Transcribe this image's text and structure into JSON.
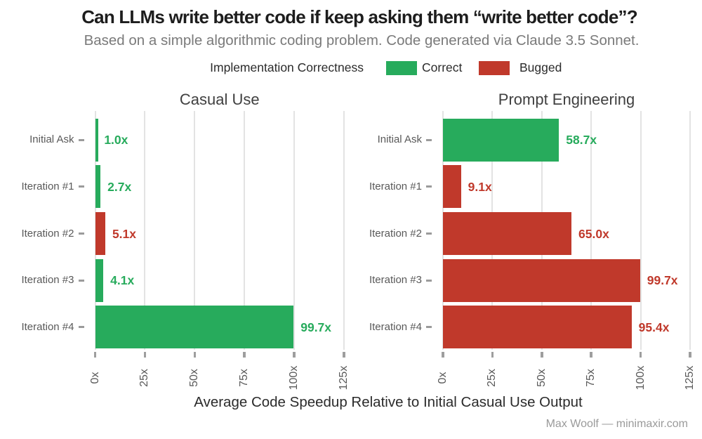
{
  "title": "Can LLMs write better code if keep asking them “write better code”?",
  "subtitle": "Based on a simple algorithmic coding problem. Code generated via Claude 3.5 Sonnet.",
  "legend": {
    "title": "Implementation Correctness",
    "items": [
      {
        "label": "Correct",
        "color": "#27ab5c"
      },
      {
        "label": "Bugged",
        "color": "#c0392b"
      }
    ]
  },
  "x_axis_title": "Average Code Speedup Relative to Initial Casual Use Output",
  "caption": "Max Woolf — minimaxir.com",
  "chart_data": {
    "type": "bar",
    "orientation": "horizontal",
    "title": "Can LLMs write better code if keep asking them “write better code”?",
    "subtitle": "Based on a simple algorithmic coding problem. Code generated via Claude 3.5 Sonnet.",
    "xlabel": "Average Code Speedup Relative to Initial Casual Use Output",
    "categories": [
      "Initial Ask",
      "Iteration #1",
      "Iteration #2",
      "Iteration #3",
      "Iteration #4"
    ],
    "xlim": [
      0,
      125
    ],
    "x_ticks": [
      {
        "value": 0,
        "label": "0x"
      },
      {
        "value": 25,
        "label": "25x"
      },
      {
        "value": 50,
        "label": "50x"
      },
      {
        "value": 75,
        "label": "75x"
      },
      {
        "value": 100,
        "label": "100x"
      },
      {
        "value": 125,
        "label": "125x"
      }
    ],
    "grid": "vertical",
    "legend_position": "top",
    "panels": [
      {
        "title": "Casual Use",
        "series_name": "Casual Use",
        "values": [
          1.0,
          2.7,
          5.1,
          4.1,
          99.7
        ],
        "value_labels": [
          "1.0x",
          "2.7x",
          "5.1x",
          "4.1x",
          "99.7x"
        ],
        "correctness": [
          "Correct",
          "Correct",
          "Bugged",
          "Correct",
          "Correct"
        ]
      },
      {
        "title": "Prompt Engineering",
        "series_name": "Prompt Engineering",
        "values": [
          58.7,
          9.1,
          65.0,
          99.7,
          95.4
        ],
        "value_labels": [
          "58.7x",
          "9.1x",
          "65.0x",
          "99.7x",
          "95.4x"
        ],
        "correctness": [
          "Correct",
          "Bugged",
          "Bugged",
          "Bugged",
          "Bugged"
        ]
      }
    ]
  }
}
